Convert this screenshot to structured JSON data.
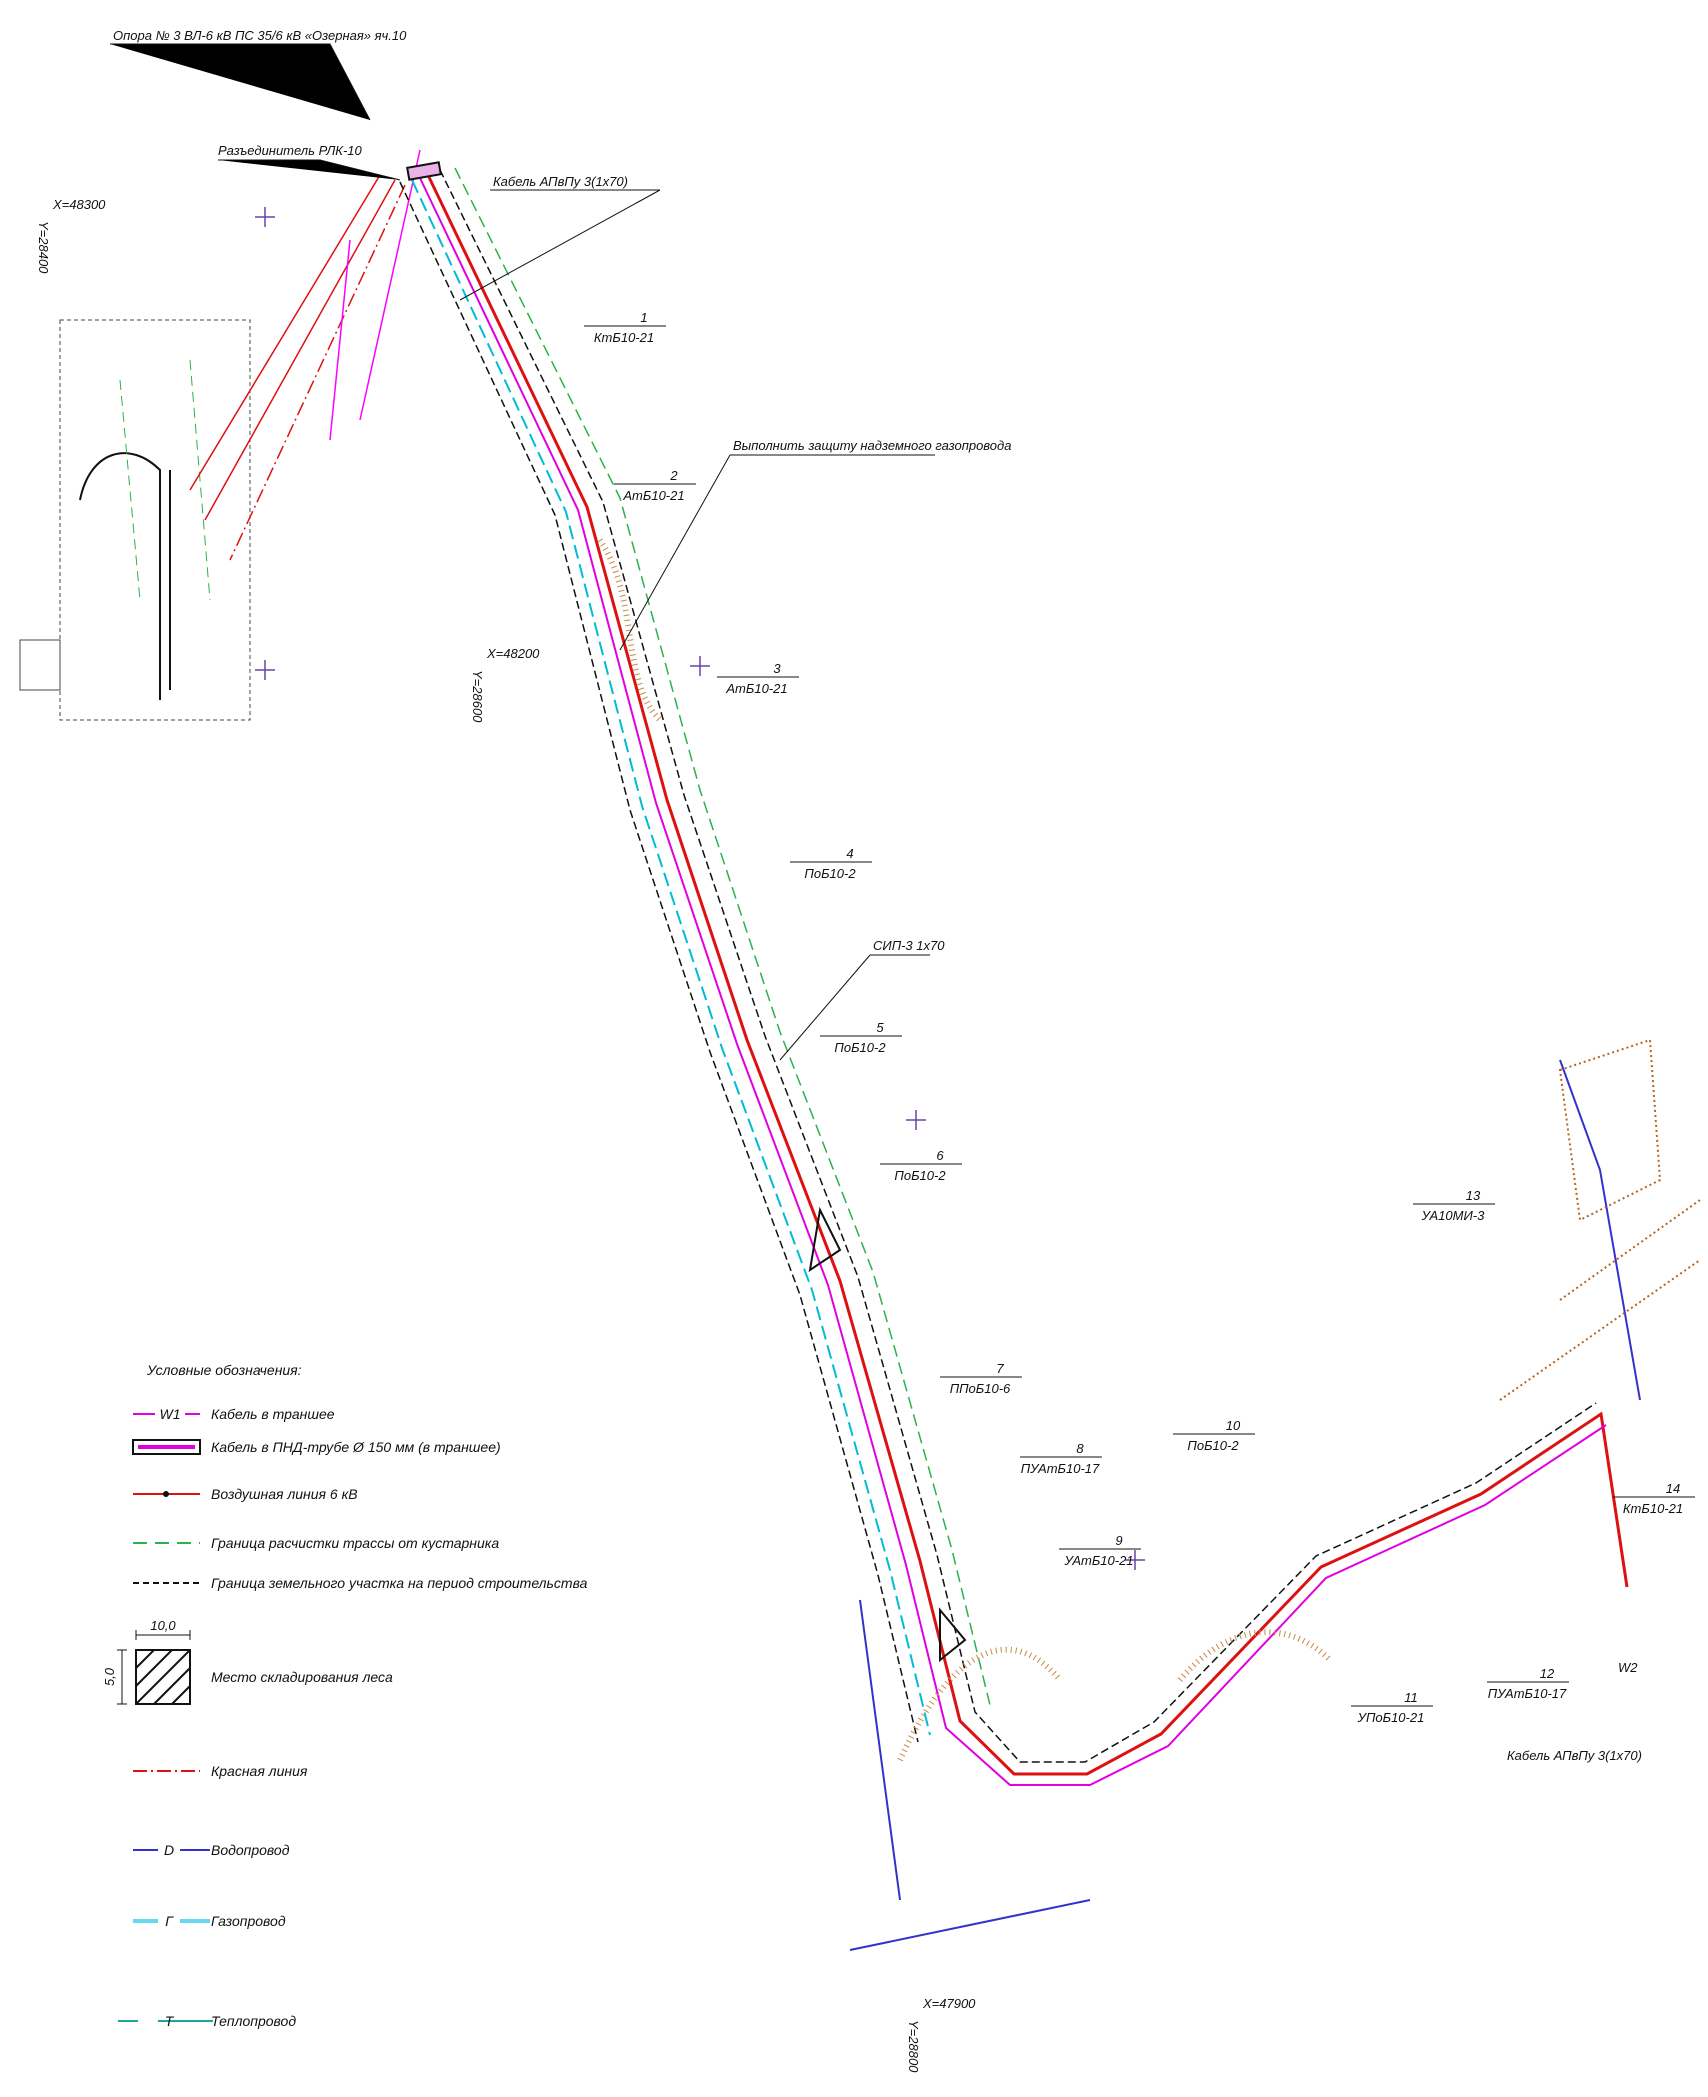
{
  "annotations": {
    "support": "Опора № 3 ВЛ-6 кВ ПС 35/6 кВ «Озерная» яч.10",
    "disconnector": "Разъединитель РЛК-10",
    "cable_top": "Кабель АПвПу 3(1х70)",
    "gas_protection": "Выполнить защиту надземного газопровода",
    "sip": "СИП-3 1х70",
    "cable_bottom": "Кабель АПвПу 3(1х70)",
    "w2": "W2"
  },
  "coordinates": [
    {
      "x": "X=48300",
      "y": "Y=28400"
    },
    {
      "x": "X=48200",
      "y": "Y=28600"
    },
    {
      "x": "X=47900",
      "y": "Y=28800"
    }
  ],
  "poles": [
    {
      "number": "1",
      "type": "КтБ10-21"
    },
    {
      "number": "2",
      "type": "АтБ10-21"
    },
    {
      "number": "3",
      "type": "АтБ10-21"
    },
    {
      "number": "4",
      "type": "ПоБ10-2"
    },
    {
      "number": "5",
      "type": "ПоБ10-2"
    },
    {
      "number": "6",
      "type": "ПоБ10-2"
    },
    {
      "number": "7",
      "type": "ППоБ10-6"
    },
    {
      "number": "8",
      "type": "ПУАтБ10-17"
    },
    {
      "number": "9",
      "type": "УАтБ10-21"
    },
    {
      "number": "10",
      "type": "ПоБ10-2"
    },
    {
      "number": "11",
      "type": "УПоБ10-21"
    },
    {
      "number": "12",
      "type": "ПУАтБ10-17"
    },
    {
      "number": "13",
      "type": "УА10МИ-3"
    },
    {
      "number": "14",
      "type": "КтБ10-21"
    }
  ],
  "legend": {
    "title": "Условные обозначения:",
    "items": [
      {
        "symbol": "W1",
        "label": "Кабель в траншее"
      },
      {
        "label": "Кабель в ПНД-трубе Ø 150 мм (в траншее)"
      },
      {
        "label": "Воздушная линия 6 кВ"
      },
      {
        "label": "Граница расчистки трассы от кустарника"
      },
      {
        "label": "Граница земельного участка на период строительства"
      },
      {
        "dimension_width": "10,0",
        "dimension_height": "5,0",
        "label": "Место складирования леса"
      },
      {
        "label": "Красная линия"
      },
      {
        "symbol": "D",
        "label": "Водопровод"
      },
      {
        "symbol": "Г",
        "label": "Газопровод"
      },
      {
        "symbol": "T",
        "label": "Теплопровод"
      }
    ]
  }
}
